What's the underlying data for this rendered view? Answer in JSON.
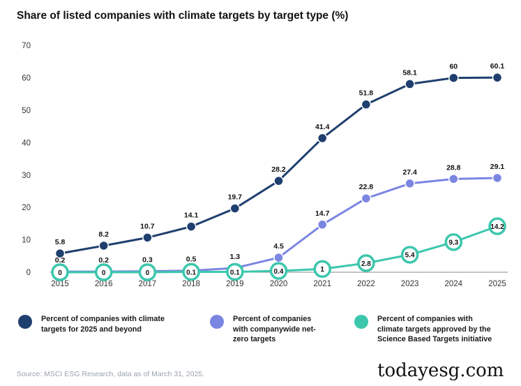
{
  "colors": {
    "series_dark": "#1f3f6e",
    "series_purple": "#7b86e2",
    "series_teal": "#3cc7ad",
    "axis_text": "#333333",
    "label_text": "#111111"
  },
  "watermark": "todayesg.com",
  "source": "Source: MSCI ESG Research, data as of March 31, 2025.",
  "chart_data": {
    "type": "line",
    "title": "Share of listed companies with climate targets by target type (%)",
    "xlabel": "",
    "ylabel": "",
    "x": [
      "2015",
      "2016",
      "2017",
      "2018",
      "2019",
      "2020",
      "2021",
      "2022",
      "2023",
      "2024",
      "2025"
    ],
    "ylim": [
      0,
      70
    ],
    "yticks": [
      0,
      10,
      20,
      30,
      40,
      50,
      60,
      70
    ],
    "grid": false,
    "legend_position": "bottom",
    "series": [
      {
        "name": "Percent of companies with climate targets for 2025 and beyond",
        "legend_lines": [
          "Percent of companies with climate",
          "targets for 2025 and beyond"
        ],
        "color": "#1f3f6e",
        "marker": "filled",
        "values": [
          5.8,
          8.2,
          10.7,
          14.1,
          19.7,
          28.2,
          41.4,
          51.8,
          58.1,
          60,
          60.1
        ],
        "labels": [
          "5.8",
          "8.2",
          "10.7",
          "14.1",
          "19.7",
          "28.2",
          "41.4",
          "51.8",
          "58.1",
          "60",
          "60.1"
        ]
      },
      {
        "name": "Percent of companies with companywide net-zero targets",
        "legend_lines": [
          "Percent of companies",
          "with companywide net-",
          "zero targets"
        ],
        "color": "#7b86e2",
        "marker": "filled",
        "values": [
          0.2,
          0.2,
          0.3,
          0.5,
          1.3,
          4.5,
          14.7,
          22.8,
          27.4,
          28.8,
          29.1
        ],
        "labels": [
          "0.2",
          "0.2",
          "0.3",
          "0.5",
          "1.3",
          "4.5",
          "14.7",
          "22.8",
          "27.4",
          "28.8",
          "29.1"
        ]
      },
      {
        "name": "Percent of companies with climate targets approved by the Science Based Targets initiative",
        "legend_lines": [
          "Percent of companies with",
          "climate targets approved by the",
          "Science Based Targets initiative"
        ],
        "color": "#3cc7ad",
        "marker": "ring",
        "values": [
          0,
          0,
          0,
          0.1,
          0.1,
          0.4,
          1,
          2.8,
          5.4,
          9.3,
          14.2
        ],
        "labels": [
          "0",
          "0",
          "0",
          "0.1",
          "0.1",
          "0.4",
          "1",
          "2.8",
          "5.4",
          "9.3",
          "14.2"
        ]
      }
    ]
  }
}
